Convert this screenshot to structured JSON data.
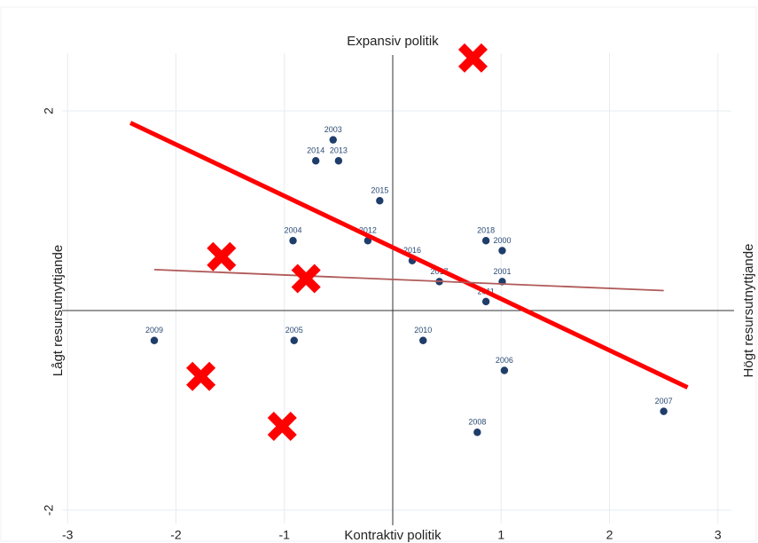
{
  "chart_data": {
    "type": "scatter",
    "top_label": "Expansiv politik",
    "bottom_label": "Kontraktiv politik",
    "left_label": "Lågt resursutnyttjande",
    "right_label": "Högt resursutnyttjande",
    "xlim": [
      -3.1,
      3.1
    ],
    "ylim": [
      -2.2,
      3.0
    ],
    "xticks": [
      -3,
      -2,
      -1,
      1,
      2,
      3
    ],
    "yticks": [
      -2,
      2
    ],
    "grid": true,
    "points": {
      "color": "#1f3d6a",
      "labels": [
        "2003",
        "2014",
        "2013",
        "2015",
        "2004",
        "2012",
        "2018",
        "2000",
        "2016",
        "2017",
        "2001",
        "2011",
        "2009",
        "2005",
        "2010",
        "2006",
        "2008",
        "2007"
      ],
      "x": [
        -0.55,
        -0.71,
        -0.5,
        -0.12,
        -0.92,
        -0.23,
        0.86,
        1.01,
        0.18,
        0.43,
        1.01,
        0.86,
        -2.2,
        -0.91,
        0.28,
        1.03,
        0.78,
        2.5
      ],
      "values": [
        1.71,
        1.5,
        1.5,
        1.1,
        0.7,
        0.7,
        0.7,
        0.6,
        0.5,
        0.29,
        0.29,
        0.09,
        -0.3,
        -0.3,
        -0.3,
        -0.6,
        -1.22,
        -1.01
      ]
    },
    "markers": {
      "color": "#ff0000",
      "x": [
        0.74,
        -1.58,
        -0.8,
        -1.77,
        -1.02
      ],
      "values": [
        2.53,
        0.54,
        0.32,
        -0.66,
        -1.16
      ]
    },
    "lines": [
      {
        "color": "#ff0000",
        "width": 5,
        "x": [
          -2.42,
          2.72
        ],
        "values": [
          1.88,
          -0.77
        ]
      },
      {
        "color": "#b05a5a",
        "width": 1.8,
        "x": [
          -2.2,
          2.5
        ],
        "values": [
          0.41,
          0.2
        ]
      }
    ]
  }
}
